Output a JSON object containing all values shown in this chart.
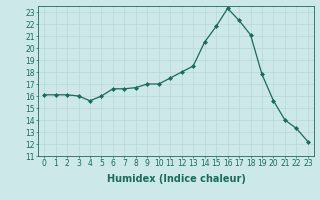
{
  "x": [
    0,
    1,
    2,
    3,
    4,
    5,
    6,
    7,
    8,
    9,
    10,
    11,
    12,
    13,
    14,
    15,
    16,
    17,
    18,
    19,
    20,
    21,
    22,
    23
  ],
  "y": [
    16.1,
    16.1,
    16.1,
    16.0,
    15.6,
    16.0,
    16.6,
    16.6,
    16.7,
    17.0,
    17.0,
    17.5,
    18.0,
    18.5,
    20.5,
    21.8,
    23.3,
    22.3,
    21.1,
    17.8,
    15.6,
    14.0,
    13.3,
    12.2
  ],
  "xlabel": "Humidex (Indice chaleur)",
  "xlim": [
    -0.5,
    23.5
  ],
  "ylim": [
    11,
    23.5
  ],
  "yticks": [
    11,
    12,
    13,
    14,
    15,
    16,
    17,
    18,
    19,
    20,
    21,
    22,
    23
  ],
  "xticks": [
    0,
    1,
    2,
    3,
    4,
    5,
    6,
    7,
    8,
    9,
    10,
    11,
    12,
    13,
    14,
    15,
    16,
    17,
    18,
    19,
    20,
    21,
    22,
    23
  ],
  "line_color": "#1a6b5a",
  "marker": "D",
  "marker_size": 2.0,
  "bg_color": "#cce8e8",
  "grid_color": "#b8d8d8",
  "xlabel_fontsize": 7,
  "tick_fontsize": 5.5
}
